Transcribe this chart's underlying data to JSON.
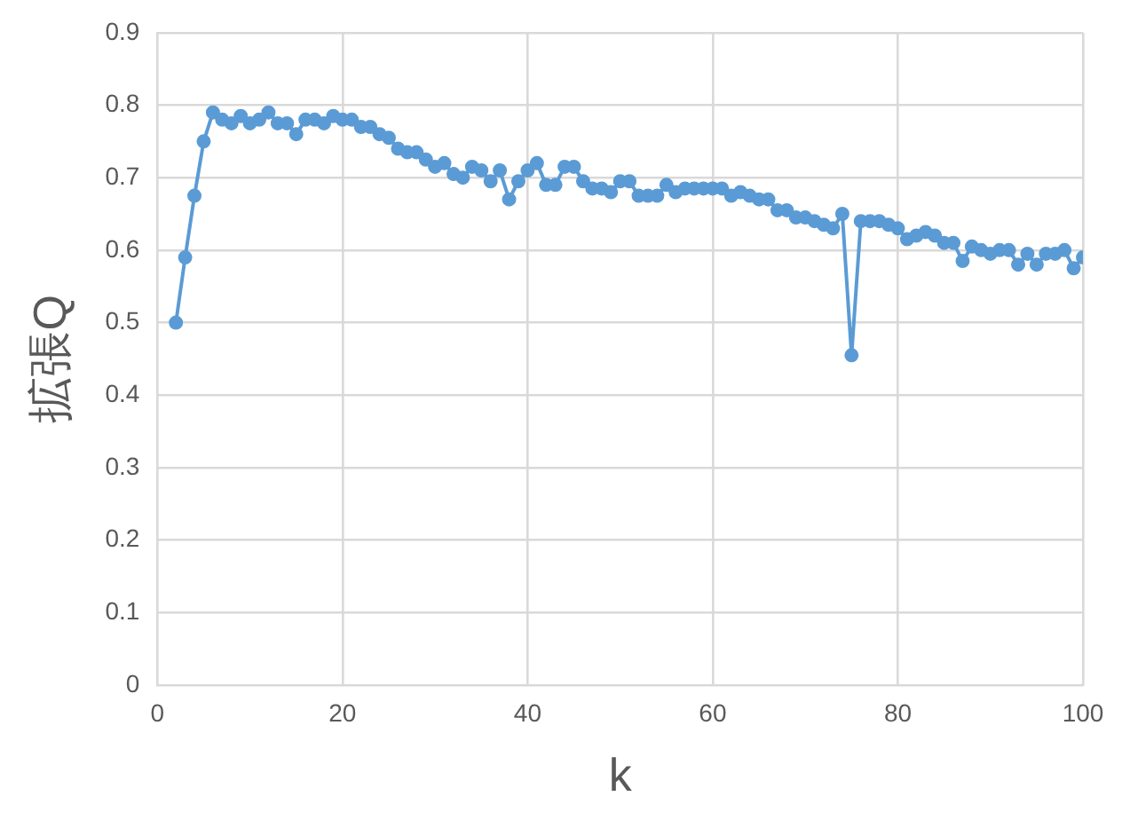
{
  "chart_data": {
    "type": "line",
    "xlabel": "k",
    "ylabel": "拡張Q",
    "x": [
      2,
      3,
      4,
      5,
      6,
      7,
      8,
      9,
      10,
      11,
      12,
      13,
      14,
      15,
      16,
      17,
      18,
      19,
      20,
      21,
      22,
      23,
      24,
      25,
      26,
      27,
      28,
      29,
      30,
      31,
      32,
      33,
      34,
      35,
      36,
      37,
      38,
      39,
      40,
      41,
      42,
      43,
      44,
      45,
      46,
      47,
      48,
      49,
      50,
      51,
      52,
      53,
      54,
      55,
      56,
      57,
      58,
      59,
      60,
      61,
      62,
      63,
      64,
      65,
      66,
      67,
      68,
      69,
      70,
      71,
      72,
      73,
      74,
      75,
      76,
      77,
      78,
      79,
      80,
      81,
      82,
      83,
      84,
      85,
      86,
      87,
      88,
      89,
      90,
      91,
      92,
      93,
      94,
      95,
      96,
      97,
      98,
      99,
      100
    ],
    "series": [
      {
        "color": "#5b9bd5",
        "values": [
          0.5,
          0.59,
          0.675,
          0.75,
          0.79,
          0.78,
          0.775,
          0.785,
          0.775,
          0.78,
          0.79,
          0.775,
          0.775,
          0.76,
          0.78,
          0.78,
          0.775,
          0.785,
          0.78,
          0.78,
          0.77,
          0.77,
          0.76,
          0.755,
          0.74,
          0.735,
          0.735,
          0.725,
          0.715,
          0.72,
          0.705,
          0.7,
          0.715,
          0.71,
          0.695,
          0.71,
          0.67,
          0.695,
          0.71,
          0.72,
          0.69,
          0.69,
          0.715,
          0.715,
          0.695,
          0.685,
          0.685,
          0.68,
          0.695,
          0.695,
          0.675,
          0.675,
          0.675,
          0.69,
          0.68,
          0.685,
          0.685,
          0.685,
          0.685,
          0.685,
          0.675,
          0.68,
          0.675,
          0.67,
          0.67,
          0.655,
          0.655,
          0.645,
          0.645,
          0.64,
          0.635,
          0.63,
          0.65,
          0.455,
          0.64,
          0.64,
          0.64,
          0.635,
          0.63,
          0.615,
          0.62,
          0.625,
          0.62,
          0.61,
          0.61,
          0.585,
          0.605,
          0.6,
          0.595,
          0.6,
          0.6,
          0.58,
          0.595,
          0.58,
          0.595,
          0.595,
          0.6,
          0.575,
          0.59
        ]
      }
    ],
    "xlim": [
      0,
      100
    ],
    "xticks": [
      0,
      20,
      40,
      60,
      80,
      100
    ],
    "ylim": [
      0,
      0.9
    ],
    "yticks": [
      0,
      0.1,
      0.2,
      0.3,
      0.4,
      0.5,
      0.6,
      0.7,
      0.8,
      0.9
    ],
    "grid": true,
    "marker": "circle",
    "line_style": "solid",
    "legend": false
  }
}
